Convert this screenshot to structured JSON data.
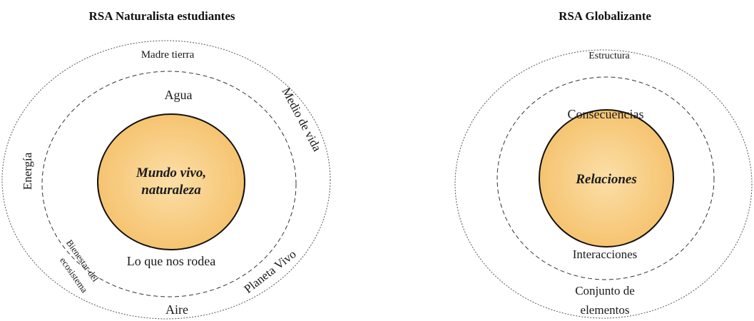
{
  "left": {
    "title": "RSA Naturalista estudiantes",
    "core_line1": "Mundo vivo,",
    "core_line2": "naturaleza",
    "inner_ring": {
      "top": "Agua",
      "bottom": "Lo que nos rodea"
    },
    "outer_ring": {
      "top": "Madre tierra",
      "upper_right": "Medio de vida",
      "left": "Energía",
      "lower_left_line1": "Bienestar del",
      "lower_left_line2": "ecosistema",
      "bottom": "Aire",
      "lower_right": "Planeta Vivo"
    }
  },
  "right": {
    "title": "RSA Globalizante",
    "core": "Relaciones",
    "inner_ring": {
      "top": "Consecuencias",
      "bottom": "Interacciones"
    },
    "outer_ring": {
      "top": "Estructura",
      "bottom_line1": "Conjunto de",
      "bottom_line2": "elementos"
    }
  },
  "colors": {
    "core_fill": "#f6c777",
    "core_fill_light": "#fbdfa8",
    "core_stroke": "#111111",
    "ring_stroke": "#555555"
  }
}
